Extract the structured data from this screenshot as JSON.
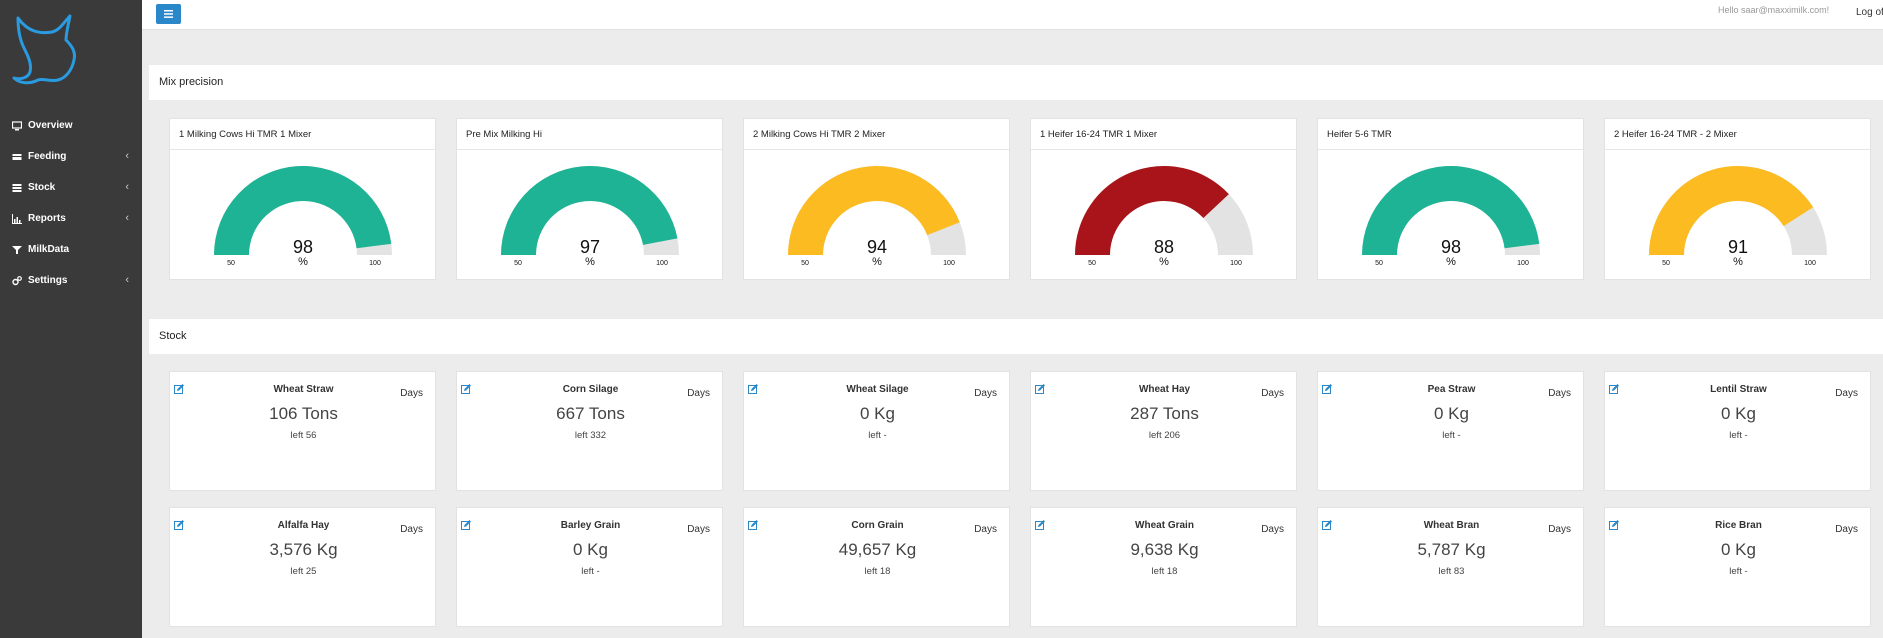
{
  "user": {
    "greeting": "Hello saar@maxximilk.com!",
    "logoff": "Log off"
  },
  "nav": [
    {
      "label": "Overview",
      "icon": "monitor-icon",
      "has_submenu": false
    },
    {
      "label": "Feeding",
      "icon": "feeding-icon",
      "has_submenu": true
    },
    {
      "label": "Stock",
      "icon": "stock-icon",
      "has_submenu": true
    },
    {
      "label": "Reports",
      "icon": "bar-chart-icon",
      "has_submenu": true
    },
    {
      "label": "MilkData",
      "icon": "filter-icon",
      "has_submenu": false
    },
    {
      "label": "Settings",
      "icon": "gears-icon",
      "has_submenu": true
    }
  ],
  "mix_precision": {
    "title": "Mix precision",
    "gauges": [
      {
        "title": "1 Milking Cows Hi TMR 1 Mixer",
        "value": "98",
        "percent": 98,
        "min": "50",
        "max": "100",
        "unit": "%",
        "color": "#1eb394"
      },
      {
        "title": "Pre Mix Milking Hi",
        "value": "97",
        "percent": 97,
        "min": "50",
        "max": "100",
        "unit": "%",
        "color": "#1eb394"
      },
      {
        "title": "2 Milking Cows Hi TMR 2 Mixer",
        "value": "94",
        "percent": 94,
        "min": "50",
        "max": "100",
        "unit": "%",
        "color": "#fbbb21"
      },
      {
        "title": "1 Heifer 16-24 TMR 1 Mixer",
        "value": "88",
        "percent": 88,
        "min": "50",
        "max": "100",
        "unit": "%",
        "color": "#a81419"
      },
      {
        "title": "Heifer 5-6 TMR",
        "value": "98",
        "percent": 98,
        "min": "50",
        "max": "100",
        "unit": "%",
        "color": "#1eb394"
      },
      {
        "title": "2 Heifer 16-24 TMR - 2 Mixer",
        "value": "91",
        "percent": 91,
        "min": "50",
        "max": "100",
        "unit": "%",
        "color": "#fbbb21"
      }
    ]
  },
  "stock": {
    "title": "Stock",
    "items": [
      {
        "name": "Wheat Straw",
        "days_label": "Days",
        "value": "106 Tons",
        "left": "left 56"
      },
      {
        "name": "Corn Silage",
        "days_label": "Days",
        "value": "667 Tons",
        "left": "left 332"
      },
      {
        "name": "Wheat Silage",
        "days_label": "Days",
        "value": "0 Kg",
        "left": "left -"
      },
      {
        "name": "Wheat Hay",
        "days_label": "Days",
        "value": "287 Tons",
        "left": "left 206"
      },
      {
        "name": "Pea Straw",
        "days_label": "Days",
        "value": "0 Kg",
        "left": "left -"
      },
      {
        "name": "Lentil Straw",
        "days_label": "Days",
        "value": "0 Kg",
        "left": "left -"
      },
      {
        "name": "Alfalfa Hay",
        "days_label": "Days",
        "value": "3,576 Kg",
        "left": "left 25"
      },
      {
        "name": "Barley Grain",
        "days_label": "Days",
        "value": "0 Kg",
        "left": "left -"
      },
      {
        "name": "Corn Grain",
        "days_label": "Days",
        "value": "49,657 Kg",
        "left": "left 18"
      },
      {
        "name": "Wheat Grain",
        "days_label": "Days",
        "value": "9,638 Kg",
        "left": "left 18"
      },
      {
        "name": "Wheat Bran",
        "days_label": "Days",
        "value": "5,787 Kg",
        "left": "left 83"
      },
      {
        "name": "Rice Bran",
        "days_label": "Days",
        "value": "0 Kg",
        "left": "left -"
      }
    ]
  }
}
